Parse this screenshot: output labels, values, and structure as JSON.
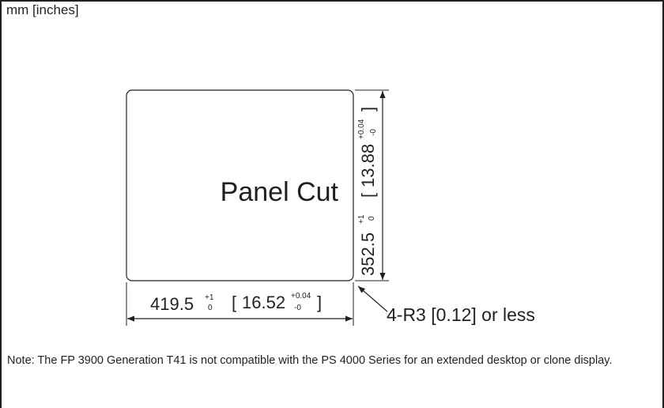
{
  "units_label": "mm [inches]",
  "panel": {
    "label": "Panel Cut"
  },
  "width_dim": {
    "value": "419.5",
    "tol_upper": "+1",
    "tol_lower": "0",
    "bracket_open": "[",
    "inch_value": "16.52",
    "inch_tol_upper": "+0.04",
    "inch_tol_lower": "-0",
    "bracket_close": "]"
  },
  "height_dim": {
    "value": "352.5",
    "tol_upper": "+1",
    "tol_lower": "0",
    "bracket_open": "[",
    "inch_value": "13.88",
    "inch_tol_upper": "+0.04",
    "inch_tol_lower": "-0",
    "bracket_close": "]"
  },
  "corner_callout": "4-R3 [0.12] or less",
  "note": "Note: The FP 3900 Generation T41  is not compatible with the PS 4000 Series for an extended desktop or clone display."
}
